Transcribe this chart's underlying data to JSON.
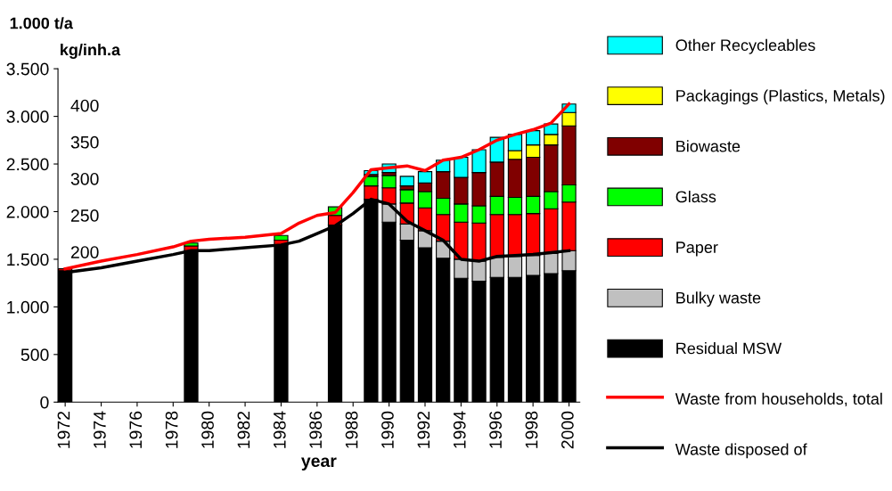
{
  "chart_data": {
    "type": "bar",
    "stacked": true,
    "xlabel": "year",
    "ylabel": "1.000 t/a",
    "y2label": "kg/inh.a",
    "x": [
      1972,
      1979,
      1984,
      1987,
      1989,
      1990,
      1991,
      1992,
      1993,
      1994,
      1995,
      1996,
      1997,
      1998,
      1999,
      2000
    ],
    "xlim": [
      1971.6,
      2000.6
    ],
    "xticks": [
      1972,
      1974,
      1976,
      1978,
      1980,
      1982,
      1984,
      1986,
      1988,
      1990,
      1992,
      1994,
      1996,
      1998,
      2000
    ],
    "ylim": [
      0,
      3500
    ],
    "yticks": [
      0,
      {
        "value": 500,
        "label": "500"
      },
      {
        "value": 1000,
        "label": "1.000"
      },
      {
        "value": 1500,
        "label": "1.500"
      },
      {
        "value": 2000,
        "label": "2.000"
      },
      {
        "value": 2500,
        "label": "2.500"
      },
      {
        "value": 3000,
        "label": "3.000"
      },
      {
        "value": 3500,
        "label": "3.500"
      }
    ],
    "y2lim": [
      -5,
      450
    ],
    "y2ticks": [
      200,
      250,
      300,
      350,
      400
    ],
    "grid": false,
    "legend": "right",
    "series": [
      {
        "name": "Residual MSW",
        "color": "#000000",
        "values": [
          1380,
          1590,
          1650,
          1860,
          2130,
          1890,
          1700,
          1620,
          1510,
          1300,
          1270,
          1310,
          1310,
          1330,
          1350,
          1380
        ]
      },
      {
        "name": "Bulky waste",
        "color": "#c0c0c0",
        "values": [
          null,
          null,
          null,
          null,
          null,
          190,
          170,
          180,
          180,
          200,
          210,
          210,
          220,
          210,
          210,
          210
        ]
      },
      {
        "name": "Paper",
        "color": "#ff0000",
        "values": [
          20,
          50,
          50,
          100,
          140,
          170,
          220,
          240,
          280,
          390,
          400,
          450,
          440,
          440,
          470,
          510
        ]
      },
      {
        "name": "Glass",
        "color": "#00ff00",
        "values": [
          null,
          30,
          50,
          90,
          100,
          130,
          140,
          170,
          170,
          190,
          180,
          190,
          180,
          180,
          180,
          180
        ]
      },
      {
        "name": "Biowaste",
        "color": "#800000",
        "values": [
          null,
          null,
          null,
          null,
          20,
          30,
          40,
          90,
          280,
          280,
          350,
          360,
          400,
          410,
          490,
          620
        ]
      },
      {
        "name": "Packagings (Plastics, Metals)",
        "color": "#ffff00",
        "values": [
          null,
          null,
          null,
          null,
          null,
          null,
          null,
          null,
          null,
          null,
          null,
          null,
          90,
          130,
          110,
          140
        ]
      },
      {
        "name": "Other Recycleables",
        "color": "#00ffff",
        "values": [
          null,
          null,
          null,
          null,
          40,
          90,
          100,
          120,
          120,
          210,
          240,
          260,
          170,
          150,
          110,
          90
        ]
      },
      {
        "name": "Waste from households, total",
        "type": "line",
        "color": "#ff0000",
        "x": [
          1972,
          1974,
          1976,
          1978,
          1979,
          1980,
          1982,
          1984,
          1985,
          1986,
          1987,
          1988,
          1989,
          1990,
          1991,
          1992,
          1993,
          1994,
          1995,
          1996,
          1997,
          1998,
          1999,
          2000
        ],
        "values": [
          1400,
          1480,
          1550,
          1630,
          1690,
          1710,
          1730,
          1770,
          1880,
          1960,
          1990,
          2200,
          2440,
          2460,
          2480,
          2430,
          2540,
          2570,
          2650,
          2750,
          2810,
          2860,
          2930,
          3130
        ]
      },
      {
        "name": "Waste disposed of",
        "type": "line",
        "color": "#000000",
        "x": [
          1972.4,
          1974,
          1976,
          1978,
          1979,
          1980,
          1982,
          1984,
          1985,
          1986,
          1987,
          1988,
          1989,
          1990,
          1991,
          1992,
          1993,
          1994,
          1995,
          1996,
          1997,
          1998,
          1999,
          2000
        ],
        "values": [
          1370,
          1410,
          1480,
          1550,
          1590,
          1590,
          1620,
          1650,
          1690,
          1770,
          1850,
          1980,
          2130,
          2080,
          1900,
          1800,
          1700,
          1500,
          1480,
          1530,
          1540,
          1550,
          1570,
          1590
        ]
      }
    ]
  }
}
